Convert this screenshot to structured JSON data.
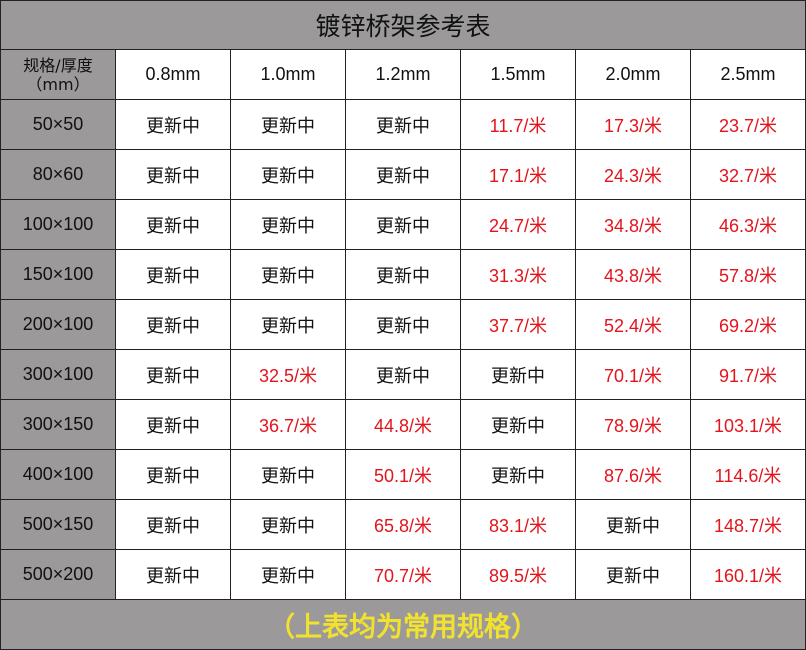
{
  "title": "镀锌桥架参考表",
  "header": {
    "spec_label": "规格/厚度",
    "unit_label": "（mm）",
    "thicknesses": [
      "0.8mm",
      "1.0mm",
      "1.2mm",
      "1.5mm",
      "2.0mm",
      "2.5mm"
    ]
  },
  "rows": [
    {
      "spec": "50×50",
      "values": [
        "更新中",
        "更新中",
        "更新中",
        "11.7/米",
        "17.3/米",
        "23.7/米"
      ]
    },
    {
      "spec": "80×60",
      "values": [
        "更新中",
        "更新中",
        "更新中",
        "17.1/米",
        "24.3/米",
        "32.7/米"
      ]
    },
    {
      "spec": "100×100",
      "values": [
        "更新中",
        "更新中",
        "更新中",
        "24.7/米",
        "34.8/米",
        "46.3/米"
      ]
    },
    {
      "spec": "150×100",
      "values": [
        "更新中",
        "更新中",
        "更新中",
        "31.3/米",
        "43.8/米",
        "57.8/米"
      ]
    },
    {
      "spec": "200×100",
      "values": [
        "更新中",
        "更新中",
        "更新中",
        "37.7/米",
        "52.4/米",
        "69.2/米"
      ]
    },
    {
      "spec": "300×100",
      "values": [
        "更新中",
        "32.5/米",
        "更新中",
        "更新中",
        "70.1/米",
        "91.7/米"
      ]
    },
    {
      "spec": "300×150",
      "values": [
        "更新中",
        "36.7/米",
        "44.8/米",
        "更新中",
        "78.9/米",
        "103.1/米"
      ]
    },
    {
      "spec": "400×100",
      "values": [
        "更新中",
        "更新中",
        "50.1/米",
        "更新中",
        "87.6/米",
        "114.6/米"
      ]
    },
    {
      "spec": "500×150",
      "values": [
        "更新中",
        "更新中",
        "65.8/米",
        "83.1/米",
        "更新中",
        "148.7/米"
      ]
    },
    {
      "spec": "500×200",
      "values": [
        "更新中",
        "更新中",
        "70.7/米",
        "89.5/米",
        "更新中",
        "160.1/米"
      ]
    }
  ],
  "footer": "（上表均为常用规格）",
  "colors": {
    "header_bg": "#9b999a",
    "price": "#e3141c",
    "footer_text": "#f2e22e"
  }
}
